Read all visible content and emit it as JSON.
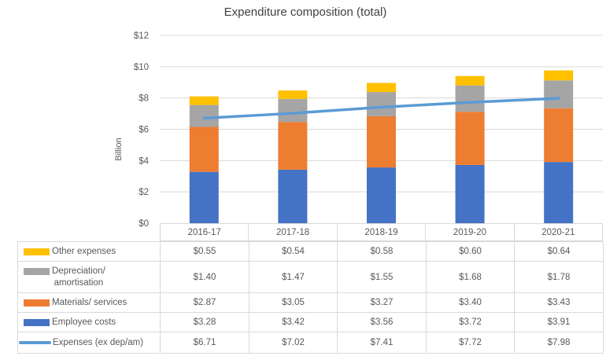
{
  "chart_data": {
    "type": "bar",
    "subtype": "stacked-bars-with-line-overlay",
    "title": "Expenditure composition (total)",
    "xlabel": "",
    "ylabel": "Billion",
    "categories": [
      "2016-17",
      "2017-18",
      "2018-19",
      "2019-20",
      "2020-21"
    ],
    "series": [
      {
        "name": "Employee costs",
        "type": "bar",
        "color": "#4472C4",
        "values": [
          3.28,
          3.42,
          3.56,
          3.72,
          3.91
        ]
      },
      {
        "name": "Materials/ services",
        "type": "bar",
        "color": "#ED7D31",
        "values": [
          2.87,
          3.05,
          3.27,
          3.4,
          3.43
        ]
      },
      {
        "name": "Depreciation/ amortisation",
        "type": "bar",
        "color": "#A5A5A5",
        "values": [
          1.4,
          1.47,
          1.55,
          1.68,
          1.78
        ]
      },
      {
        "name": "Other expenses",
        "type": "bar",
        "color": "#FFC000",
        "values": [
          0.55,
          0.54,
          0.58,
          0.6,
          0.64
        ]
      },
      {
        "name": "Expenses (ex dep/am)",
        "type": "line",
        "color": "#5B9BD5",
        "values": [
          6.71,
          7.02,
          7.41,
          7.72,
          7.98
        ]
      }
    ],
    "ylim": [
      0,
      12
    ],
    "y_tick_values": [
      0,
      2,
      4,
      6,
      8,
      10,
      12
    ],
    "y_tick_labels": [
      "$0",
      "$2",
      "$4",
      "$6",
      "$8",
      "$10",
      "$12"
    ],
    "grid": true,
    "legend_position": "data-table-below-chart"
  },
  "table": {
    "rows": [
      {
        "id": "other-expenses",
        "label": "Other expenses",
        "swatch": "rect",
        "color": "#FFC000",
        "values": [
          "$0.55",
          "$0.54",
          "$0.58",
          "$0.60",
          "$0.64"
        ]
      },
      {
        "id": "depreciation-amortisation",
        "label": "Depreciation/\namortisation",
        "swatch": "rect",
        "color": "#A5A5A5",
        "values": [
          "$1.40",
          "$1.47",
          "$1.55",
          "$1.68",
          "$1.78"
        ]
      },
      {
        "id": "materials-services",
        "label": "Materials/ services",
        "swatch": "rect",
        "color": "#ED7D31",
        "values": [
          "$2.87",
          "$3.05",
          "$3.27",
          "$3.40",
          "$3.43"
        ]
      },
      {
        "id": "employee-costs",
        "label": "Employee costs",
        "swatch": "rect",
        "color": "#4472C4",
        "values": [
          "$3.28",
          "$3.42",
          "$3.56",
          "$3.72",
          "$3.91"
        ]
      },
      {
        "id": "expenses-ex-dep-am",
        "label": "Expenses (ex dep/am)",
        "swatch": "line",
        "color": "#5B9BD5",
        "values": [
          "$6.71",
          "$7.02",
          "$7.41",
          "$7.72",
          "$7.98"
        ]
      }
    ]
  },
  "style": {
    "title_color": "#404040",
    "axis_text_color": "#595959",
    "gridline_color": "#d9d9d9"
  }
}
